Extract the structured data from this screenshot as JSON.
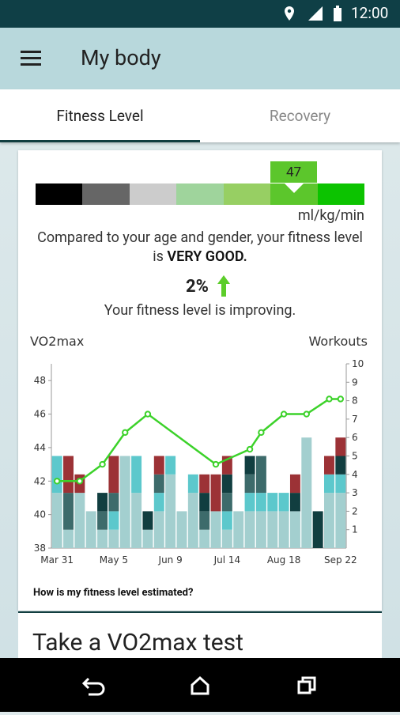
{
  "status_bar": {
    "time": "12:00"
  },
  "app_bar": {
    "title": "My body"
  },
  "tabs": [
    "Fitness Level",
    "Recovery"
  ],
  "gauge": {
    "value": "47",
    "unit": "ml/kg/min",
    "colors": [
      "#000000",
      "#666666",
      "#cccccc",
      "#9fd49c",
      "#97cf63",
      "#5cc62c",
      "#0cc300"
    ]
  },
  "assessment": {
    "text": "Compared to your age and gender, your fitness level is",
    "level": "VERY GOOD."
  },
  "trend": {
    "change": "2%",
    "text": "Your fitness level is improving."
  },
  "chart_data": {
    "type": "bar",
    "stacked": true,
    "y_label": "VO2max",
    "y2_label": "Workouts",
    "categories": [
      "Mar 31",
      null,
      null,
      null,
      null,
      "May 5",
      null,
      null,
      null,
      null,
      "Jun 9",
      null,
      null,
      null,
      null,
      "Jul 14",
      null,
      null,
      null,
      null,
      "Aug 18",
      null,
      null,
      null,
      null,
      "Sep 22"
    ],
    "ylim": [
      38,
      49
    ],
    "yticks": [
      38,
      40,
      42,
      44,
      46,
      48
    ],
    "y2lim": [
      0,
      10
    ],
    "y2ticks": [
      1,
      2,
      3,
      4,
      5,
      6,
      7,
      8,
      9,
      10
    ],
    "series": [
      {
        "color": "#a3cfcf",
        "axis": "y2",
        "values": [
          3,
          1,
          3,
          2,
          1,
          1,
          5,
          3,
          1,
          2,
          4,
          2,
          3,
          1,
          2,
          1,
          2,
          2,
          2,
          2,
          2,
          2,
          6,
          0,
          3,
          3
        ]
      },
      {
        "color": "#5cc8cc",
        "axis": "y2",
        "values": [
          2,
          0,
          0,
          0,
          0,
          1,
          0,
          2,
          0,
          1,
          1,
          0,
          1,
          0,
          0,
          1,
          0,
          1,
          1,
          1,
          1,
          0,
          0,
          0,
          1,
          1
        ]
      },
      {
        "color": "#3d6b6b",
        "axis": "y2",
        "values": [
          0,
          2,
          0,
          0,
          1,
          1,
          0,
          0,
          0,
          1,
          0,
          0,
          0,
          1,
          0,
          1,
          0,
          1,
          2,
          0,
          0,
          0,
          0,
          0,
          0,
          0
        ]
      },
      {
        "color": "#113e40",
        "axis": "y2",
        "values": [
          0,
          0,
          0,
          0,
          1,
          0,
          0,
          0,
          1,
          0,
          0,
          0,
          0,
          1,
          0,
          1,
          0,
          1,
          0,
          0,
          0,
          1,
          0,
          2,
          0,
          1
        ]
      },
      {
        "color": "#9c3236",
        "axis": "y2",
        "values": [
          0,
          2,
          1,
          0,
          0,
          2,
          0,
          0,
          0,
          1,
          0,
          0,
          0,
          1,
          2,
          1,
          0,
          0,
          0,
          0,
          0,
          1,
          0,
          0,
          1,
          1
        ]
      },
      {
        "type": "line",
        "color": "#3cd22a",
        "axis": "y",
        "x": [
          0,
          2,
          4,
          6,
          8,
          14,
          17,
          18,
          20,
          22,
          24,
          25
        ],
        "values": [
          42,
          42,
          43,
          44.9,
          46,
          43,
          43.9,
          44.9,
          46,
          46,
          46.9,
          46.9
        ]
      }
    ]
  },
  "help_link": "How is my fitness level estimated?",
  "next_card": {
    "title": "Take a VO2max test"
  }
}
